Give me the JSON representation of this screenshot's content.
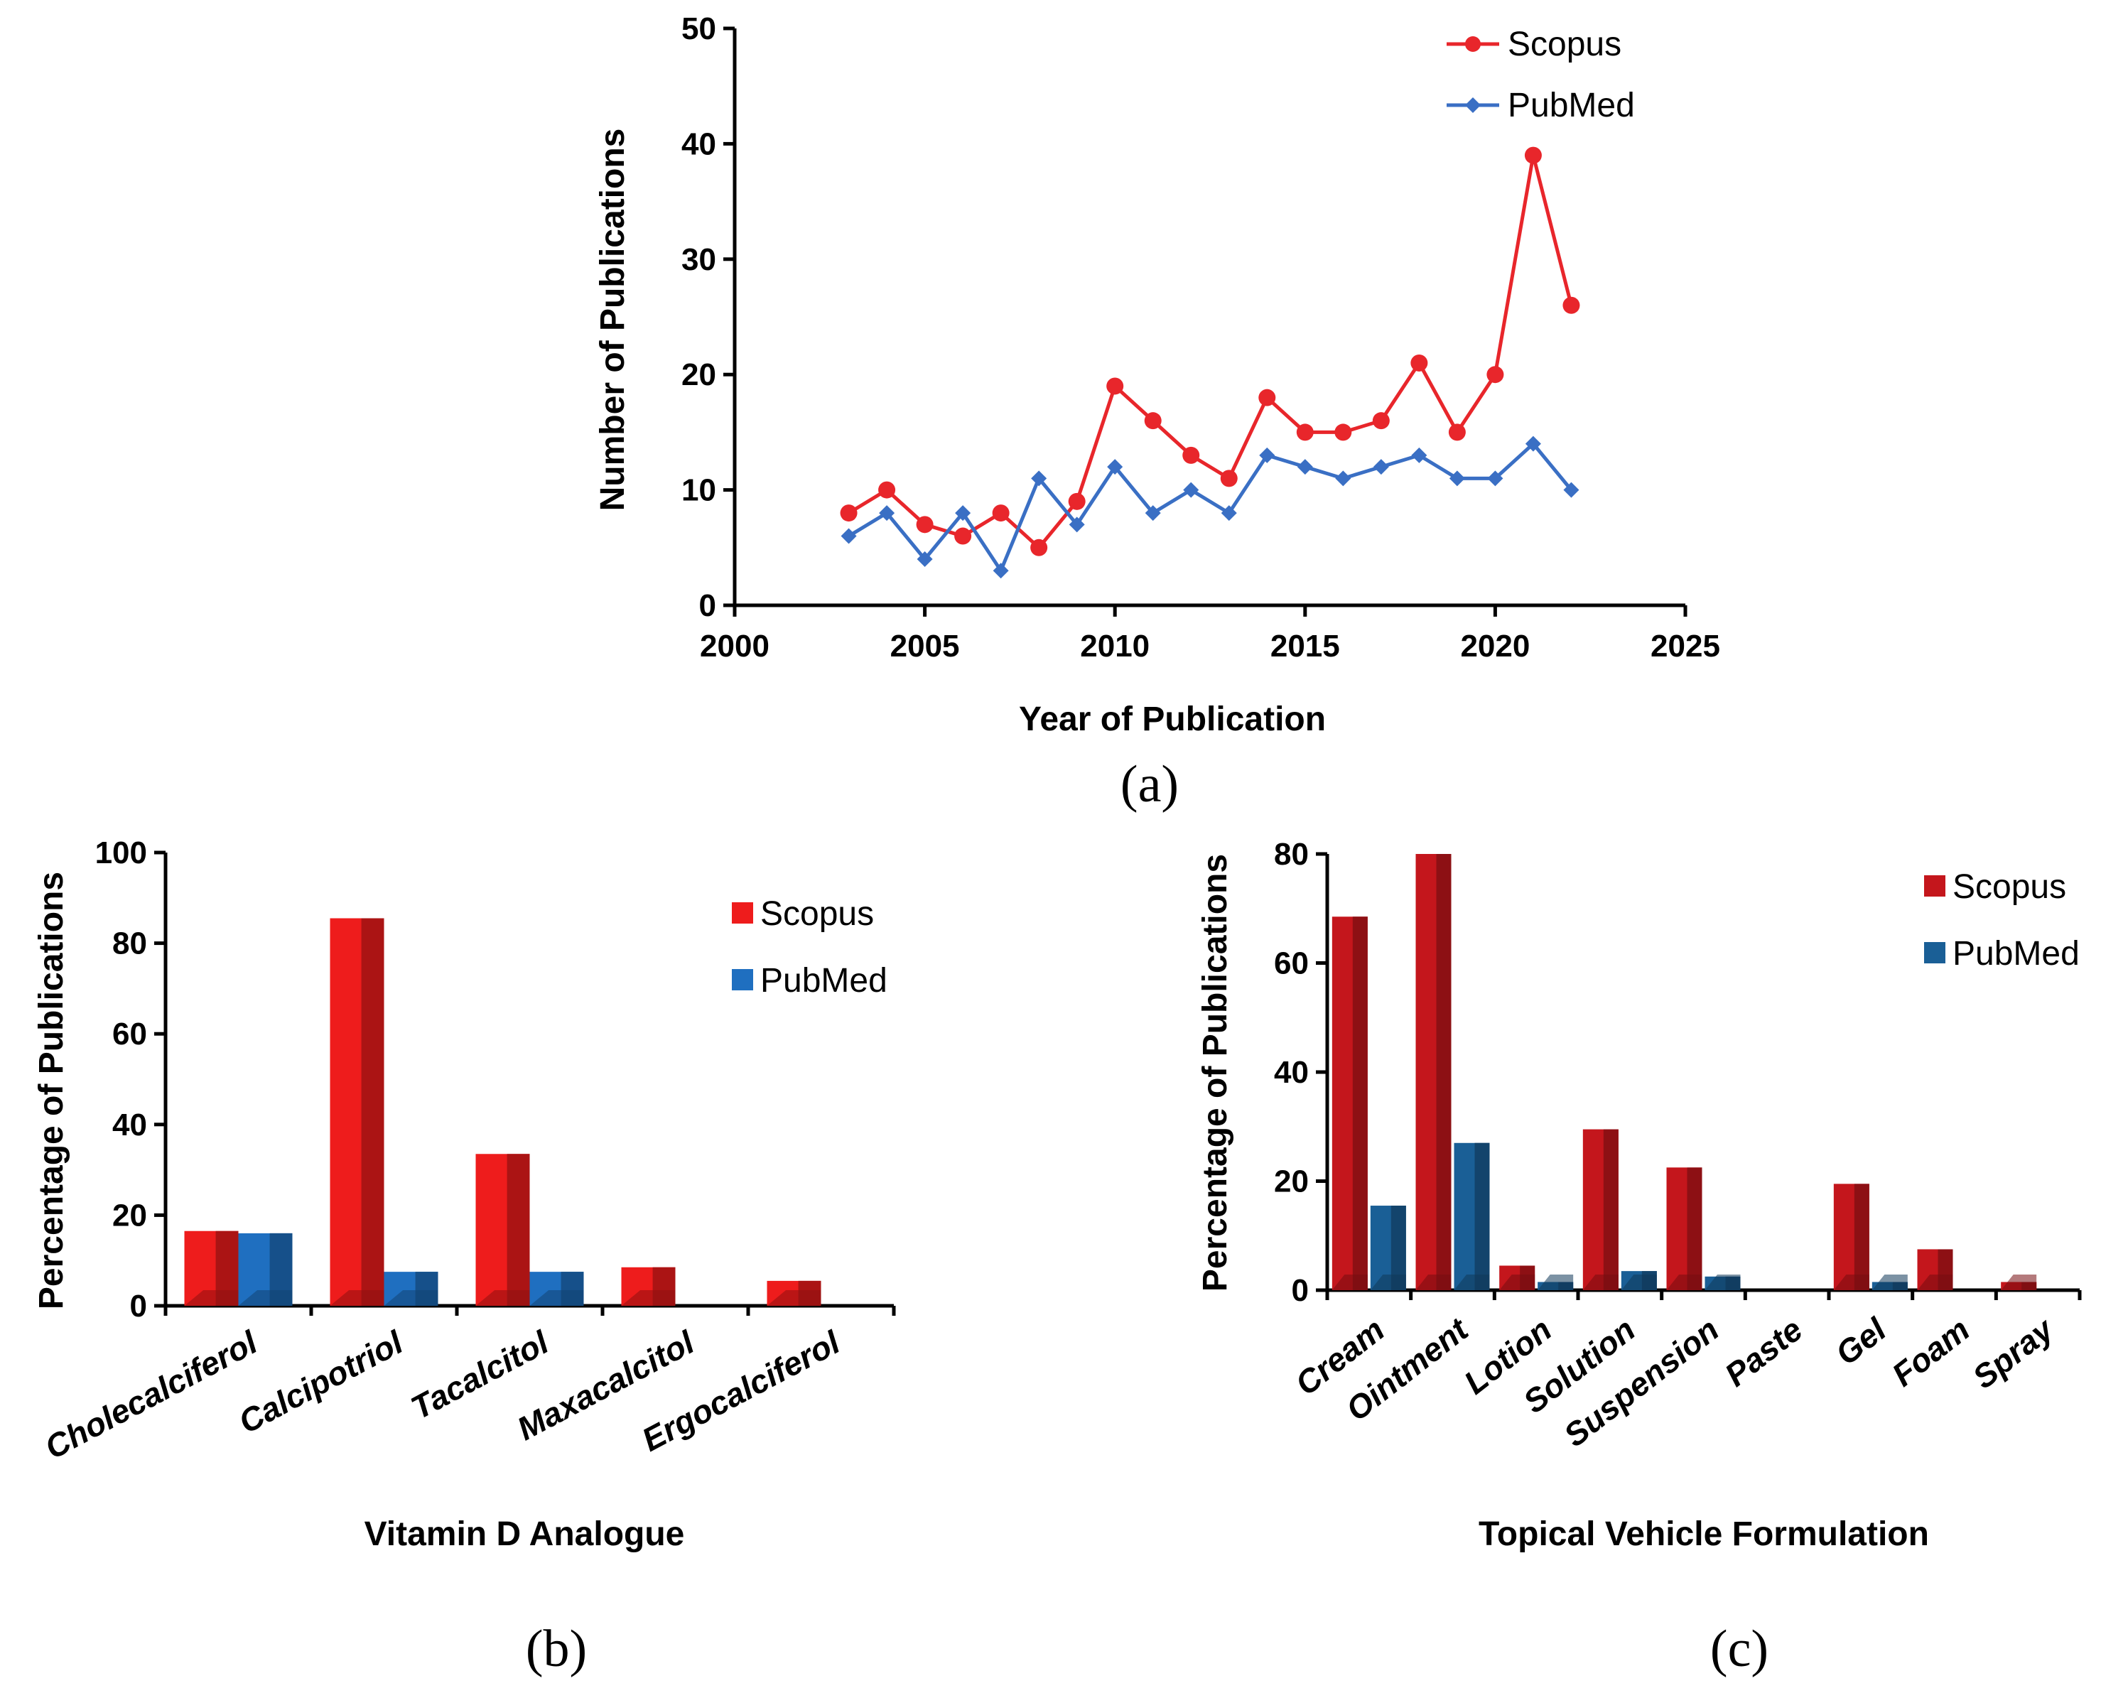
{
  "chart_data": [
    {
      "type": "line",
      "panel": "(a)",
      "title": "",
      "xlabel": "Year of Publication",
      "ylabel": "Number of Publications",
      "xlim": [
        2000,
        2025
      ],
      "ylim": [
        0,
        50
      ],
      "xticks": [
        2000,
        2005,
        2010,
        2015,
        2020,
        2025
      ],
      "yticks": [
        0,
        10,
        20,
        30,
        40,
        50
      ],
      "x": [
        2003,
        2004,
        2005,
        2006,
        2007,
        2008,
        2009,
        2010,
        2011,
        2012,
        2013,
        2014,
        2015,
        2016,
        2017,
        2018,
        2019,
        2020,
        2021,
        2022
      ],
      "series": [
        {
          "name": "Scopus",
          "color": "#e8262b",
          "marker": "circle",
          "values": [
            8,
            10,
            7,
            6,
            8,
            5,
            9,
            19,
            16,
            13,
            11,
            18,
            15,
            15,
            16,
            21,
            15,
            20,
            39,
            26
          ]
        },
        {
          "name": "PubMed",
          "color": "#3a6fc4",
          "marker": "diamond",
          "values": [
            6,
            8,
            4,
            8,
            3,
            11,
            7,
            12,
            8,
            10,
            8,
            13,
            12,
            11,
            12,
            13,
            11,
            11,
            14,
            10
          ]
        }
      ],
      "legend_position": "top-right",
      "grid": false
    },
    {
      "type": "bar",
      "panel": "(b)",
      "title": "",
      "xlabel": "Vitamin D Analogue",
      "ylabel": "Percentage of Publications",
      "ylim": [
        0,
        100
      ],
      "yticks": [
        0,
        20,
        40,
        60,
        80,
        100
      ],
      "categories": [
        "Cholecalciferol",
        "Calcipotriol",
        "Tacalcitol",
        "Maxacalcitol",
        "Ergocalciferol"
      ],
      "series": [
        {
          "name": "Scopus",
          "color": "#ee1c1c",
          "values": [
            16.5,
            85.5,
            33.5,
            8.5,
            5.5
          ]
        },
        {
          "name": "PubMed",
          "color": "#1f6fc0",
          "values": [
            16,
            7.5,
            7.5,
            0,
            0
          ]
        }
      ],
      "legend_position": "top-right",
      "grid": false
    },
    {
      "type": "bar",
      "panel": "(c)",
      "title": "",
      "xlabel": "Topical Vehicle Formulation",
      "ylabel": "Percentage of Publications",
      "ylim": [
        0,
        80
      ],
      "yticks": [
        0,
        20,
        40,
        60,
        80
      ],
      "categories": [
        "Cream",
        "Ointment",
        "Lotion",
        "Solution",
        "Suspension",
        "Paste",
        "Gel",
        "Foam",
        "Spray"
      ],
      "series": [
        {
          "name": "Scopus",
          "color": "#c4161c",
          "values": [
            68.5,
            80,
            4.5,
            29.5,
            22.5,
            0,
            19.5,
            7.5,
            1.5
          ]
        },
        {
          "name": "PubMed",
          "color": "#1a5f96",
          "values": [
            15.5,
            27,
            1.5,
            3.5,
            2.5,
            0,
            1.5,
            0,
            0
          ]
        }
      ],
      "legend_position": "top-right",
      "grid": false
    }
  ]
}
